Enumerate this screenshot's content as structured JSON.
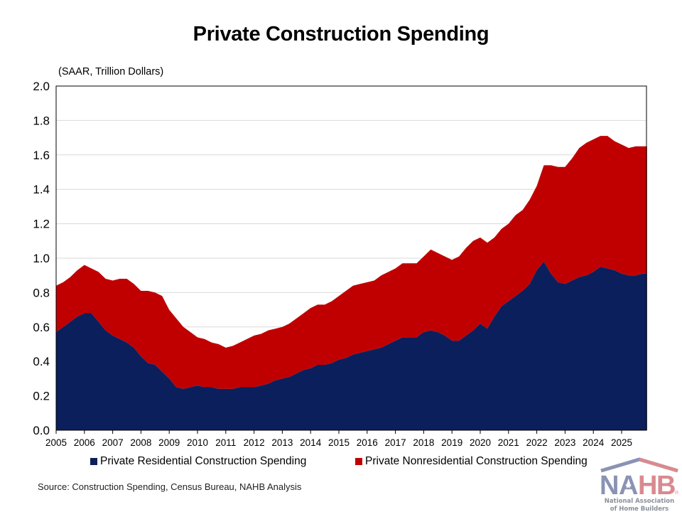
{
  "chart_data": {
    "type": "area",
    "stacked": true,
    "title": "Private Construction Spending",
    "ylabel": "(SAAR, Trillion Dollars)",
    "xlabel": "",
    "ylim": [
      0,
      2.0
    ],
    "xlim": [
      2005,
      2026
    ],
    "y_ticks": [
      "0.0",
      "0.2",
      "0.4",
      "0.6",
      "0.8",
      "1.0",
      "1.2",
      "1.4",
      "1.6",
      "1.8",
      "2.0"
    ],
    "x_ticks": [
      "2005",
      "2006",
      "2007",
      "2008",
      "2009",
      "2010",
      "2011",
      "2012",
      "2013",
      "2014",
      "2015",
      "2016",
      "2017",
      "2018",
      "2019",
      "2020",
      "2021",
      "2022",
      "2023",
      "2024",
      "2025"
    ],
    "grid": "horizontal",
    "legend_position": "bottom",
    "x": [
      2005.0,
      2005.25,
      2005.5,
      2005.75,
      2006.0,
      2006.25,
      2006.5,
      2006.75,
      2007.0,
      2007.25,
      2007.5,
      2007.75,
      2008.0,
      2008.25,
      2008.5,
      2008.75,
      2009.0,
      2009.25,
      2009.5,
      2009.75,
      2010.0,
      2010.25,
      2010.5,
      2010.75,
      2011.0,
      2011.25,
      2011.5,
      2011.75,
      2012.0,
      2012.25,
      2012.5,
      2012.75,
      2013.0,
      2013.25,
      2013.5,
      2013.75,
      2014.0,
      2014.25,
      2014.5,
      2014.75,
      2015.0,
      2015.25,
      2015.5,
      2015.75,
      2016.0,
      2016.25,
      2016.5,
      2016.75,
      2017.0,
      2017.25,
      2017.5,
      2017.75,
      2018.0,
      2018.25,
      2018.5,
      2018.75,
      2019.0,
      2019.25,
      2019.5,
      2019.75,
      2020.0,
      2020.25,
      2020.5,
      2020.75,
      2021.0,
      2021.25,
      2021.5,
      2021.75,
      2022.0,
      2022.25,
      2022.5,
      2022.75,
      2023.0,
      2023.25,
      2023.5,
      2023.75,
      2024.0,
      2024.25,
      2024.5,
      2024.75,
      2025.0,
      2025.25,
      2025.5,
      2025.75,
      2025.9
    ],
    "series": [
      {
        "name": "Private Residential Construction Spending",
        "color": "#0B1F5C",
        "values": [
          0.57,
          0.6,
          0.63,
          0.66,
          0.68,
          0.68,
          0.63,
          0.58,
          0.55,
          0.53,
          0.51,
          0.48,
          0.43,
          0.39,
          0.38,
          0.34,
          0.3,
          0.25,
          0.24,
          0.25,
          0.26,
          0.25,
          0.25,
          0.24,
          0.24,
          0.24,
          0.25,
          0.25,
          0.25,
          0.26,
          0.27,
          0.29,
          0.3,
          0.31,
          0.33,
          0.35,
          0.36,
          0.38,
          0.38,
          0.39,
          0.41,
          0.42,
          0.44,
          0.45,
          0.46,
          0.47,
          0.48,
          0.5,
          0.52,
          0.54,
          0.54,
          0.54,
          0.57,
          0.58,
          0.57,
          0.55,
          0.52,
          0.52,
          0.55,
          0.58,
          0.62,
          0.59,
          0.66,
          0.72,
          0.75,
          0.78,
          0.81,
          0.85,
          0.93,
          0.98,
          0.91,
          0.86,
          0.85,
          0.87,
          0.89,
          0.9,
          0.92,
          0.95,
          0.94,
          0.93,
          0.91,
          0.9,
          0.9,
          0.91,
          0.91
        ]
      },
      {
        "name": "Private Nonresidential Construction Spending",
        "color": "#C00000",
        "values": [
          0.27,
          0.26,
          0.26,
          0.27,
          0.28,
          0.26,
          0.29,
          0.3,
          0.32,
          0.35,
          0.37,
          0.37,
          0.38,
          0.42,
          0.42,
          0.44,
          0.4,
          0.4,
          0.36,
          0.32,
          0.28,
          0.28,
          0.26,
          0.26,
          0.24,
          0.25,
          0.26,
          0.28,
          0.3,
          0.3,
          0.31,
          0.3,
          0.3,
          0.31,
          0.32,
          0.33,
          0.35,
          0.35,
          0.35,
          0.36,
          0.37,
          0.39,
          0.4,
          0.4,
          0.4,
          0.4,
          0.42,
          0.42,
          0.42,
          0.43,
          0.43,
          0.43,
          0.44,
          0.47,
          0.46,
          0.46,
          0.47,
          0.49,
          0.51,
          0.52,
          0.5,
          0.5,
          0.46,
          0.45,
          0.45,
          0.47,
          0.47,
          0.49,
          0.49,
          0.56,
          0.63,
          0.67,
          0.68,
          0.71,
          0.75,
          0.77,
          0.77,
          0.76,
          0.77,
          0.75,
          0.75,
          0.74,
          0.75,
          0.74,
          0.74
        ]
      }
    ]
  },
  "unit_label": "(SAAR, Trillion Dollars)",
  "legend": [
    {
      "label": "Private Residential Construction Spending",
      "color": "#0B1F5C"
    },
    {
      "label": "Private Nonresidential Construction Spending",
      "color": "#C00000"
    }
  ],
  "source": "Source: Construction Spending, Census Bureau, NAHB Analysis",
  "logo": {
    "letters": [
      "N",
      "A",
      "H",
      "B"
    ],
    "registered": "®",
    "line1": "National Association",
    "line2": "of Home Builders",
    "blue": "#8A93B3",
    "red": "#D98A8F",
    "star": "★"
  }
}
